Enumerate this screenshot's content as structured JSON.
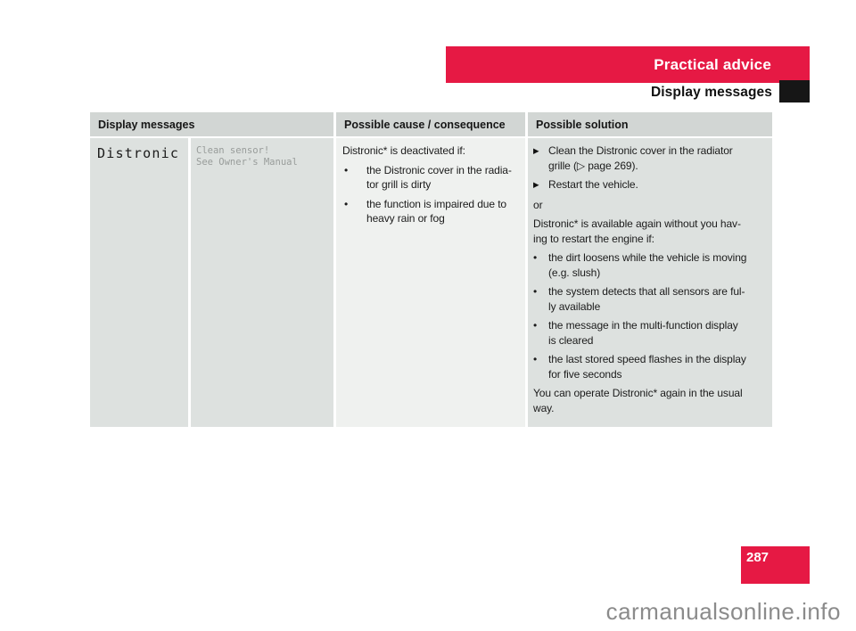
{
  "header": {
    "banner_title": "Practical advice",
    "subtitle": "Display messages"
  },
  "table": {
    "headers": {
      "messages": "Display messages",
      "cause": "Possible cause / consequence",
      "solution": "Possible solution"
    },
    "row": {
      "message_title": "Distronic",
      "message_detail": "Clean sensor!\nSee Owner's Manual",
      "cause": {
        "intro": "Distronic* is deactivated if:",
        "bullets": [
          "the Distronic cover in the radia-\ntor grill is dirty",
          "the function is impaired due to\nheavy rain or fog"
        ]
      },
      "solution": {
        "actions": [
          "Clean the Distronic cover in the radiator\ngrille (▷ page 269).",
          "Restart the vehicle."
        ],
        "or_text": "or",
        "reactivation_intro": "Distronic* is available again without you hav-\ning to restart the engine if:",
        "bullets": [
          "the dirt loosens while the vehicle is moving\n(e.g. slush)",
          "the system detects that all sensors are ful-\nly available",
          "the message in the multi-function display\nis cleared",
          "the last stored speed flashes in the display\nfor five seconds"
        ],
        "outro": "You can operate Distronic* again in the usual\nway."
      }
    }
  },
  "footer": {
    "page_number": "287",
    "watermark": "carmanualsonline.info"
  },
  "markers": {
    "action": "▶",
    "bullet": "•"
  },
  "colors": {
    "accent_red": "#e61944",
    "header_gray": "#d2d6d4",
    "cell_gray": "#dde1df",
    "cause_cell_gray": "#eff1ef",
    "lcd_text_gray": "#989c9a",
    "watermark_gray": "#8b8b8b",
    "marker_black": "#161616"
  }
}
